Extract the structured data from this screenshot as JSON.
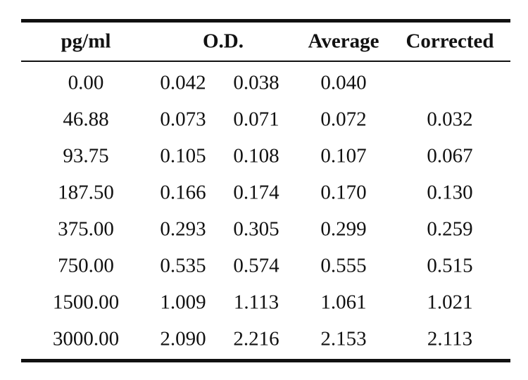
{
  "table": {
    "headers": {
      "pgml": "pg/ml",
      "od": "O.D.",
      "average": "Average",
      "corrected": "Corrected"
    },
    "rows": [
      {
        "pgml": "0.00",
        "od1": "0.042",
        "od2": "0.038",
        "average": "0.040",
        "corrected": ""
      },
      {
        "pgml": "46.88",
        "od1": "0.073",
        "od2": "0.071",
        "average": "0.072",
        "corrected": "0.032"
      },
      {
        "pgml": "93.75",
        "od1": "0.105",
        "od2": "0.108",
        "average": "0.107",
        "corrected": "0.067"
      },
      {
        "pgml": "187.50",
        "od1": "0.166",
        "od2": "0.174",
        "average": "0.170",
        "corrected": "0.130"
      },
      {
        "pgml": "375.00",
        "od1": "0.293",
        "od2": "0.305",
        "average": "0.299",
        "corrected": "0.259"
      },
      {
        "pgml": "750.00",
        "od1": "0.535",
        "od2": "0.574",
        "average": "0.555",
        "corrected": "0.515"
      },
      {
        "pgml": "1500.00",
        "od1": "1.009",
        "od2": "1.113",
        "average": "1.061",
        "corrected": "1.021"
      },
      {
        "pgml": "3000.00",
        "od1": "2.090",
        "od2": "2.216",
        "average": "2.153",
        "corrected": "2.113"
      }
    ]
  }
}
